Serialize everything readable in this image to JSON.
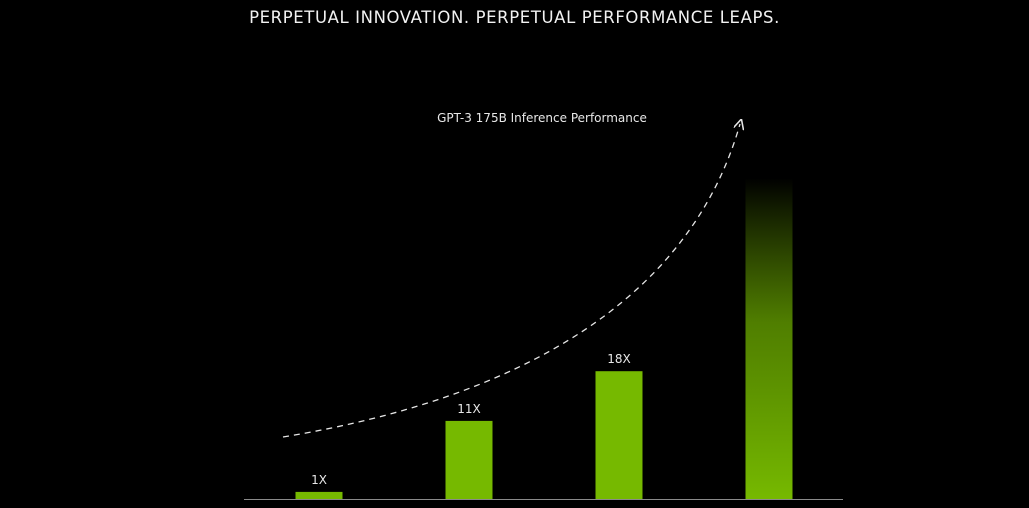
{
  "headline": "PERPETUAL INNOVATION. PERPETUAL PERFORMANCE LEAPS.",
  "colors": {
    "background": "#000000",
    "bar": "#76b900",
    "baseline": "#8a8a8a",
    "text": "#ffffff"
  },
  "chart_data": {
    "type": "bar",
    "title": "",
    "subtitle": "GPT-3 175B Inference Performance",
    "xlabel": "",
    "ylabel": "",
    "categories": [
      "",
      "",
      "",
      ""
    ],
    "values": [
      1,
      11,
      18,
      null
    ],
    "data_labels": [
      "1X",
      "11X",
      "18X",
      ""
    ],
    "ylim": [
      0,
      32
    ],
    "grid": false,
    "legend": "none",
    "annotations": [
      "dashed upward trend arrow across bars",
      "fourth bar fades out toward the top"
    ],
    "fourth_bar_fades": true
  }
}
